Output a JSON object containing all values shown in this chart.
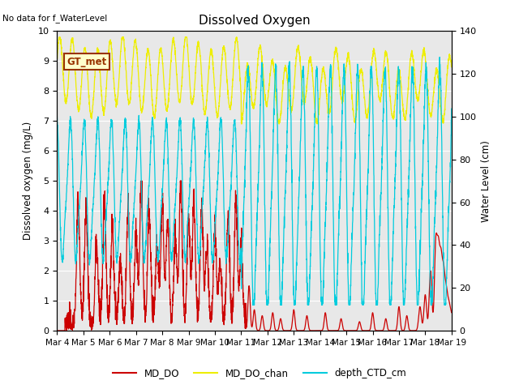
{
  "title": "Dissolved Oxygen",
  "ylabel_left": "Dissolved oxygen (mg/L)",
  "ylabel_right": "Water Level (cm)",
  "ylim_left": [
    0,
    10
  ],
  "ylim_right": [
    0,
    140
  ],
  "no_data_text": "No data for f_WaterLevel",
  "gt_met_label": "GT_met",
  "xtick_labels": [
    "Mar 4",
    "Mar 5",
    "Mar 6",
    "Mar 7",
    "Mar 8",
    "Mar 9",
    "Mar 10",
    "Mar 11",
    "Mar 12",
    "Mar 13",
    "Mar 14",
    "Mar 15",
    "Mar 16",
    "Mar 17",
    "Mar 18",
    "Mar 19"
  ],
  "colors": {
    "MD_DO": "#cc0000",
    "MD_DO_chan": "#eeee00",
    "depth_CTD_cm": "#00ccdd",
    "background": "#e8e8e8",
    "gt_met_bg": "#ffffcc",
    "gt_met_border": "#993300",
    "gt_met_text": "#993300",
    "grid": "#ffffff"
  },
  "legend_labels": [
    "MD_DO",
    "MD_DO_chan",
    "depth_CTD_cm"
  ]
}
